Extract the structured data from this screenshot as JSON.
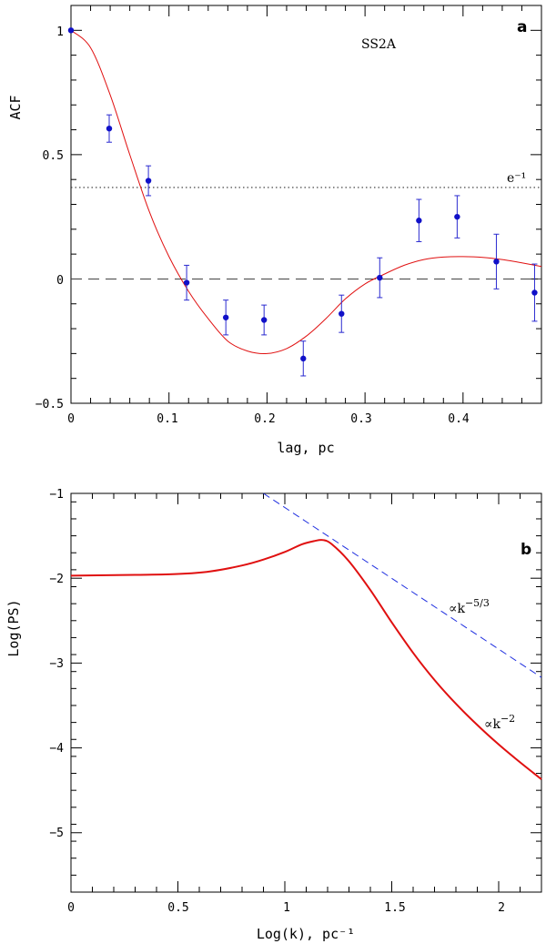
{
  "colors": {
    "model": "#e01010",
    "points": "#1010c8",
    "errorbars": "#2a2ad0",
    "powerlaw": "#2030e0",
    "axes": "#000000"
  },
  "chart_data": [
    {
      "id": "panel-a",
      "type": "scatter",
      "panel_label": "a",
      "annotation": "SS2A",
      "xlabel": "lag, pc",
      "ylabel": "ACF",
      "xlim": [
        0,
        0.48
      ],
      "ylim": [
        -0.5,
        1.1
      ],
      "xticks": [
        0,
        0.1,
        0.2,
        0.3,
        0.4
      ],
      "xtick_labels": [
        "0",
        "0.1",
        "0.2",
        "0.3",
        "0.4"
      ],
      "yticks": [
        -0.5,
        0,
        0.5,
        1
      ],
      "ytick_labels": [
        "−0.5",
        "0",
        "0.5",
        "1"
      ],
      "points": {
        "name": "ACF data",
        "x": [
          0.0,
          0.039,
          0.079,
          0.118,
          0.158,
          0.197,
          0.237,
          0.276,
          0.315,
          0.355,
          0.394,
          0.434,
          0.473
        ],
        "y": [
          1.0,
          0.605,
          0.395,
          -0.015,
          -0.155,
          -0.165,
          -0.32,
          -0.14,
          0.005,
          0.235,
          0.25,
          0.07,
          -0.055
        ],
        "err": [
          0.0,
          0.055,
          0.06,
          0.07,
          0.07,
          0.06,
          0.07,
          0.075,
          0.08,
          0.085,
          0.085,
          0.11,
          0.115
        ]
      },
      "model_curve": {
        "name": "fit",
        "x": [
          0,
          0.02,
          0.04,
          0.06,
          0.08,
          0.1,
          0.12,
          0.14,
          0.16,
          0.18,
          0.2,
          0.22,
          0.24,
          0.26,
          0.28,
          0.3,
          0.32,
          0.34,
          0.36,
          0.38,
          0.4,
          0.42,
          0.44,
          0.46,
          0.48
        ],
        "y": [
          1.0,
          0.93,
          0.74,
          0.5,
          0.27,
          0.09,
          -0.05,
          -0.16,
          -0.25,
          -0.29,
          -0.3,
          -0.28,
          -0.23,
          -0.16,
          -0.08,
          -0.02,
          0.02,
          0.055,
          0.078,
          0.088,
          0.09,
          0.087,
          0.078,
          0.065,
          0.05
        ]
      },
      "reference_lines": [
        {
          "name": "e-folding level",
          "y": 0.368,
          "style": "dotted",
          "label": "e⁻¹"
        },
        {
          "name": "zero level",
          "y": 0,
          "style": "dashed"
        }
      ]
    },
    {
      "id": "panel-b",
      "type": "line",
      "panel_label": "b",
      "xlabel": "Log(k), pc⁻¹",
      "ylabel": "Log(PS)",
      "xlim": [
        0,
        2.2
      ],
      "ylim": [
        -5.7,
        -1
      ],
      "xticks": [
        0,
        0.5,
        1,
        1.5,
        2
      ],
      "xtick_labels": [
        "0",
        "0.5",
        "1",
        "1.5",
        "2"
      ],
      "yticks": [
        -1,
        -2,
        -3,
        -4,
        -5
      ],
      "ytick_labels": [
        "−1",
        "−2",
        "−3",
        "−4",
        "−5"
      ],
      "series": [
        {
          "name": "power spectrum",
          "x": [
            0,
            0.3,
            0.5,
            0.65,
            0.8,
            0.9,
            1.0,
            1.08,
            1.14,
            1.18,
            1.22,
            1.3,
            1.4,
            1.5,
            1.6,
            1.7,
            1.8,
            1.9,
            2.0,
            2.1,
            2.2
          ],
          "y": [
            -1.97,
            -1.96,
            -1.95,
            -1.92,
            -1.85,
            -1.78,
            -1.69,
            -1.6,
            -1.56,
            -1.55,
            -1.6,
            -1.8,
            -2.14,
            -2.52,
            -2.88,
            -3.2,
            -3.48,
            -3.73,
            -3.96,
            -4.17,
            -4.37
          ]
        },
        {
          "name": "kolmogorov slope",
          "style": "dashed",
          "x": [
            0.9,
            2.2
          ],
          "y": [
            -1.0,
            -3.17
          ]
        }
      ],
      "annotations": [
        {
          "name": "kolmogorov-label",
          "prefix": "∝k",
          "exponent": "−5/3"
        },
        {
          "name": "steep-label",
          "prefix": "∝k",
          "exponent": "−2"
        }
      ]
    }
  ]
}
